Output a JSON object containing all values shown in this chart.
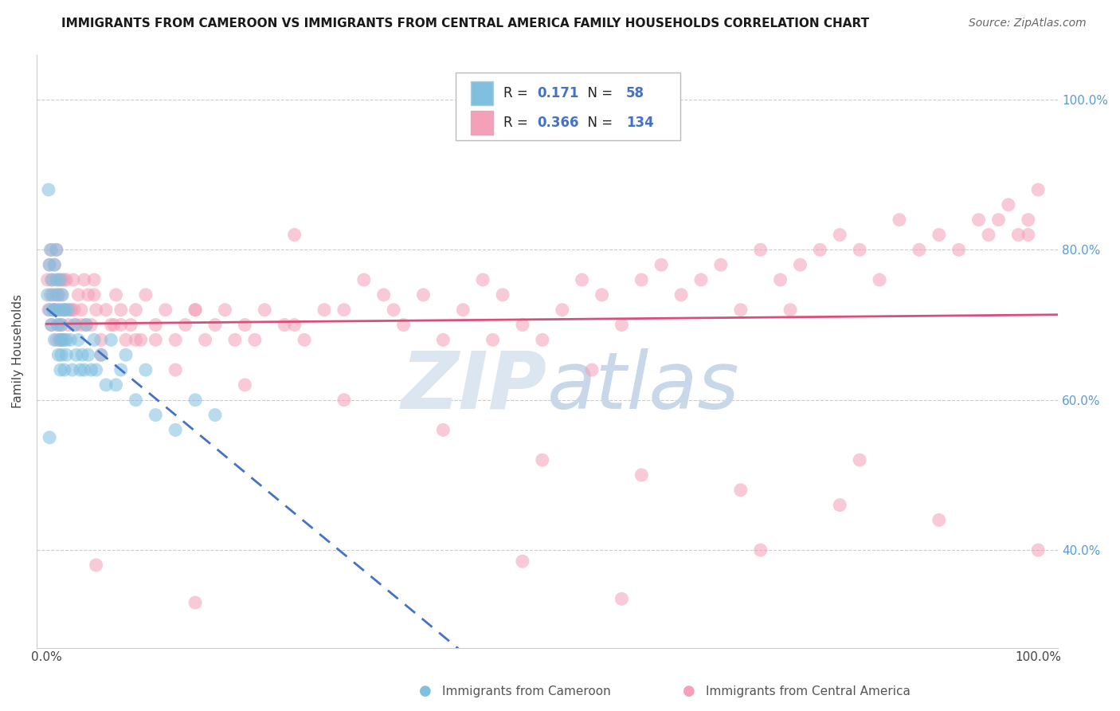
{
  "title": "IMMIGRANTS FROM CAMEROON VS IMMIGRANTS FROM CENTRAL AMERICA FAMILY HOUSEHOLDS CORRELATION CHART",
  "source": "Source: ZipAtlas.com",
  "ylabel": "Family Households",
  "legend_blue_R": "0.171",
  "legend_blue_N": "58",
  "legend_pink_R": "0.366",
  "legend_pink_N": "134",
  "blue_color": "#7fbfdf",
  "pink_color": "#f4a0b8",
  "trend_blue_color": "#4472c4",
  "trend_pink_color": "#d94f7a",
  "r_color": "#4472c4",
  "n_color": "#4472c4",
  "watermark_color": "#dce6f0",
  "xlim_min": -0.01,
  "xlim_max": 1.02,
  "ylim_min": 0.27,
  "ylim_max": 1.06,
  "ytick_vals": [
    0.4,
    0.6,
    0.8,
    1.0
  ],
  "ytick_labels": [
    "40.0%",
    "60.0%",
    "80.0%",
    "100.0%"
  ],
  "grid_color": "#cccccc",
  "bottom_label_blue": "Immigrants from Cameroon",
  "bottom_label_pink": "Immigrants from Central America"
}
